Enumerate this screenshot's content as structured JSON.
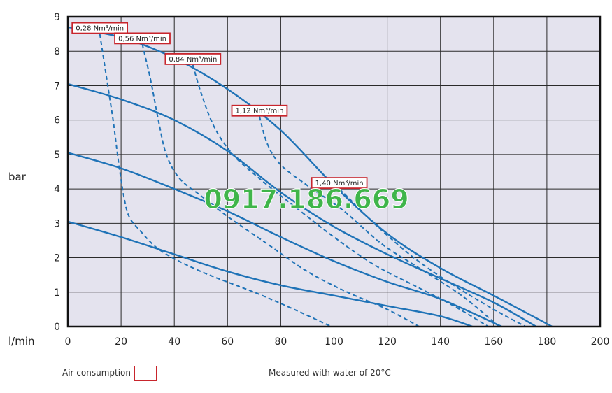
{
  "chart_data": {
    "type": "line",
    "xlabel": "l/min",
    "ylabel": "bar",
    "xlim": [
      0,
      200
    ],
    "ylim": [
      0,
      9
    ],
    "xticks": [
      0,
      20,
      40,
      60,
      80,
      100,
      120,
      140,
      160,
      180,
      200
    ],
    "yticks": [
      0,
      1,
      2,
      3,
      4,
      5,
      6,
      7,
      8,
      9
    ],
    "grid": true,
    "background": "#e4e3ee",
    "line_color": "#1f73b7",
    "label_border_color": "#c8252c",
    "pressure_curves": [
      {
        "values": [
          [
            0,
            8.7
          ],
          [
            20,
            8.4
          ],
          [
            40,
            7.8
          ],
          [
            60,
            6.9
          ],
          [
            80,
            5.7
          ],
          [
            100,
            4.1
          ],
          [
            120,
            2.7
          ],
          [
            140,
            1.7
          ],
          [
            160,
            0.9
          ],
          [
            182,
            0
          ]
        ]
      },
      {
        "values": [
          [
            0,
            7.05
          ],
          [
            20,
            6.6
          ],
          [
            40,
            6.0
          ],
          [
            60,
            5.1
          ],
          [
            80,
            3.9
          ],
          [
            100,
            2.9
          ],
          [
            120,
            2.1
          ],
          [
            140,
            1.4
          ],
          [
            160,
            0.7
          ],
          [
            176,
            0
          ]
        ]
      },
      {
        "values": [
          [
            0,
            5.05
          ],
          [
            20,
            4.6
          ],
          [
            40,
            4.0
          ],
          [
            60,
            3.35
          ],
          [
            80,
            2.6
          ],
          [
            100,
            1.9
          ],
          [
            120,
            1.3
          ],
          [
            140,
            0.8
          ],
          [
            163,
            0
          ]
        ]
      },
      {
        "values": [
          [
            0,
            3.05
          ],
          [
            20,
            2.6
          ],
          [
            40,
            2.1
          ],
          [
            60,
            1.6
          ],
          [
            80,
            1.2
          ],
          [
            100,
            0.9
          ],
          [
            120,
            0.6
          ],
          [
            140,
            0.3
          ],
          [
            152,
            0
          ]
        ]
      }
    ],
    "air_consumption_curves": [
      {
        "label": "0,28 Nm³/min",
        "values": [
          [
            12,
            8.5
          ],
          [
            15,
            7.0
          ],
          [
            17,
            6.0
          ],
          [
            19,
            4.8
          ],
          [
            21,
            3.8
          ],
          [
            23,
            3.2
          ],
          [
            27,
            2.8
          ],
          [
            35,
            2.2
          ],
          [
            50,
            1.6
          ],
          [
            70,
            1.0
          ],
          [
            85,
            0.5
          ],
          [
            99,
            0
          ]
        ]
      },
      {
        "label": "0,56 Nm³/min",
        "values": [
          [
            28,
            8.2
          ],
          [
            31,
            7.2
          ],
          [
            34,
            6.0
          ],
          [
            37,
            5.0
          ],
          [
            42,
            4.3
          ],
          [
            50,
            3.8
          ],
          [
            60,
            3.2
          ],
          [
            75,
            2.4
          ],
          [
            90,
            1.6
          ],
          [
            105,
            1.0
          ],
          [
            120,
            0.5
          ],
          [
            132,
            0
          ]
        ]
      },
      {
        "label": "0,84 Nm³/min",
        "values": [
          [
            47,
            7.6
          ],
          [
            50,
            6.8
          ],
          [
            55,
            5.8
          ],
          [
            62,
            5.0
          ],
          [
            72,
            4.3
          ],
          [
            85,
            3.5
          ],
          [
            100,
            2.6
          ],
          [
            115,
            1.8
          ],
          [
            130,
            1.2
          ],
          [
            145,
            0.6
          ],
          [
            158,
            0
          ]
        ]
      },
      {
        "label": "1,12 Nm³/min",
        "values": [
          [
            72,
            6.1
          ],
          [
            75,
            5.3
          ],
          [
            80,
            4.7
          ],
          [
            90,
            4.1
          ],
          [
            103,
            3.4
          ],
          [
            118,
            2.4
          ],
          [
            132,
            1.7
          ],
          [
            148,
            0.9
          ],
          [
            162,
            0
          ]
        ]
      },
      {
        "label": "1,40 Nm³/min",
        "values": [
          [
            102,
            4.0
          ],
          [
            106,
            3.7
          ],
          [
            115,
            3.0
          ],
          [
            130,
            2.0
          ],
          [
            145,
            1.2
          ],
          [
            160,
            0.5
          ],
          [
            172,
            0
          ]
        ]
      }
    ]
  },
  "legend": {
    "air_consumption": "Air consumption",
    "measured_note": "Measured with water of 20°C"
  },
  "watermark": "0917.186.669"
}
